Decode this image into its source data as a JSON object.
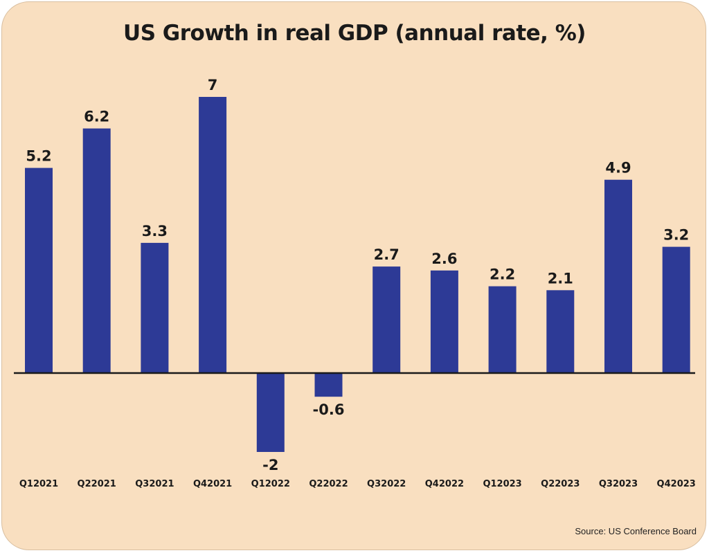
{
  "chart_data": {
    "type": "bar",
    "title": "US Growth in real GDP (annual rate, %)",
    "categories": [
      "Q12021",
      "Q22021",
      "Q32021",
      "Q42021",
      "Q12022",
      "Q22022",
      "Q32022",
      "Q42022",
      "Q12023",
      "Q22023",
      "Q32023",
      "Q42023"
    ],
    "values": [
      5.2,
      6.2,
      3.3,
      7,
      -2,
      -0.6,
      2.7,
      2.6,
      2.2,
      2.1,
      4.9,
      3.2
    ],
    "value_labels": [
      "5.2",
      "6.2",
      "3.3",
      "7",
      "-2",
      "-0.6",
      "2.7",
      "2.6",
      "2.2",
      "2.1",
      "4.9",
      "3.2"
    ],
    "xlabel": "",
    "ylabel": "",
    "grid": false,
    "legend": "none",
    "bar_color": "#2d3a96",
    "background_color": "#f9dfc0"
  },
  "footer": {
    "source": "Source: US Conference Board"
  }
}
